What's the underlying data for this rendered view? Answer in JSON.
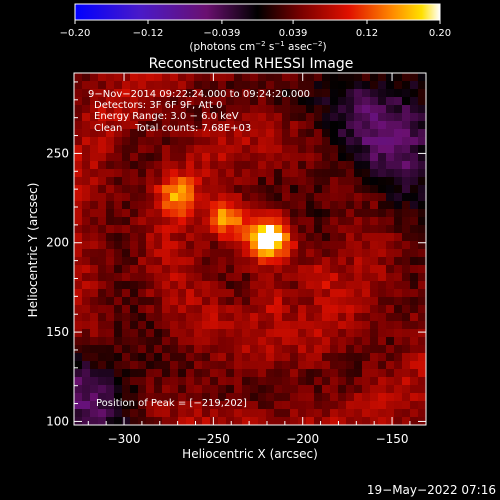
{
  "chart_data": {
    "type": "heatmap",
    "title": "Reconstructed RHESSI Image",
    "xlabel": "Heliocentric X (arcsec)",
    "ylabel": "Heliocentric Y (arcsec)",
    "x_ticks": [
      -300,
      -250,
      -200,
      -150
    ],
    "y_ticks": [
      100,
      150,
      200,
      250
    ],
    "x_tick_labels": [
      "−300",
      "−250",
      "−200",
      "−150"
    ],
    "y_tick_labels": [
      "100",
      "150",
      "200",
      "250"
    ],
    "xlim": [
      -328,
      -131
    ],
    "ylim": [
      98,
      295
    ],
    "colorbar": {
      "range": [
        -0.2,
        0.2
      ],
      "ticks": [
        -0.2,
        -0.12,
        -0.039,
        0.039,
        0.12,
        0.2
      ],
      "tick_labels": [
        "−0.20",
        "−0.12",
        "−0.039",
        "0.039",
        "0.12",
        "0.20"
      ],
      "units_text": "(photons cm",
      "units_exp1": "−2",
      "units_mid": " s",
      "units_exp2": "−1",
      "units_end": " asec",
      "units_exp3": "−2",
      "units_close": ")"
    },
    "annotations": [
      "9−Nov−2014 09:22:24.000 to 09:24:20.000",
      "Detectors: 3F 6F 9F, Att 0",
      "Energy Range: 3.0 − 6.0 keV",
      "Clean    Total counts: 7.68E+03"
    ],
    "peak_label": "Position of Peak = [−219,202]",
    "sources": [
      {
        "x": -219,
        "y": 202,
        "value": 0.2
      },
      {
        "x": -243,
        "y": 214,
        "value": 0.15
      },
      {
        "x": -270,
        "y": 226,
        "value": 0.12
      },
      {
        "x": -192,
        "y": 181,
        "value": 0.08
      },
      {
        "x": -217,
        "y": 168,
        "value": 0.07
      }
    ]
  },
  "timestamp": "19−May−2022 07:16"
}
